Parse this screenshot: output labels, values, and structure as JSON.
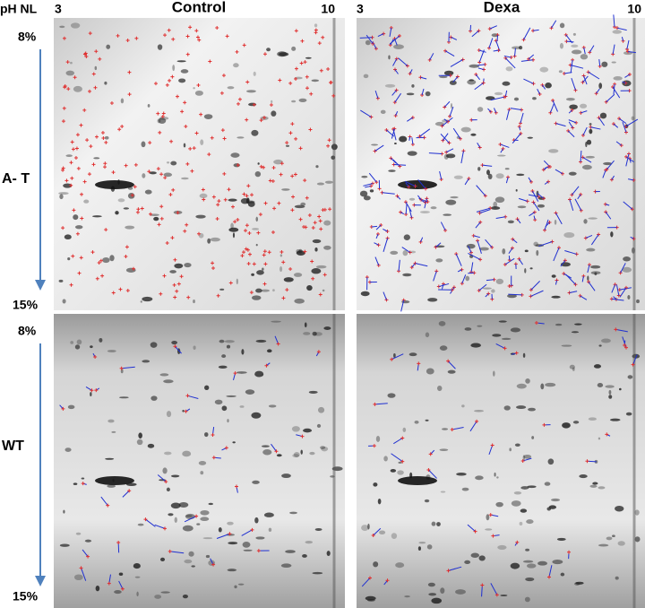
{
  "header": {
    "ph_label": "pH NL",
    "panels": [
      {
        "ph_low": "3",
        "title": "Control",
        "ph_high": "10"
      },
      {
        "ph_low": "3",
        "title": "Dexa",
        "ph_high": "10"
      }
    ]
  },
  "rows": [
    {
      "label": "A- T",
      "top": "8%",
      "bottom": "15%"
    },
    {
      "label": "WT",
      "top": "8%",
      "bottom": "15%"
    }
  ]
}
